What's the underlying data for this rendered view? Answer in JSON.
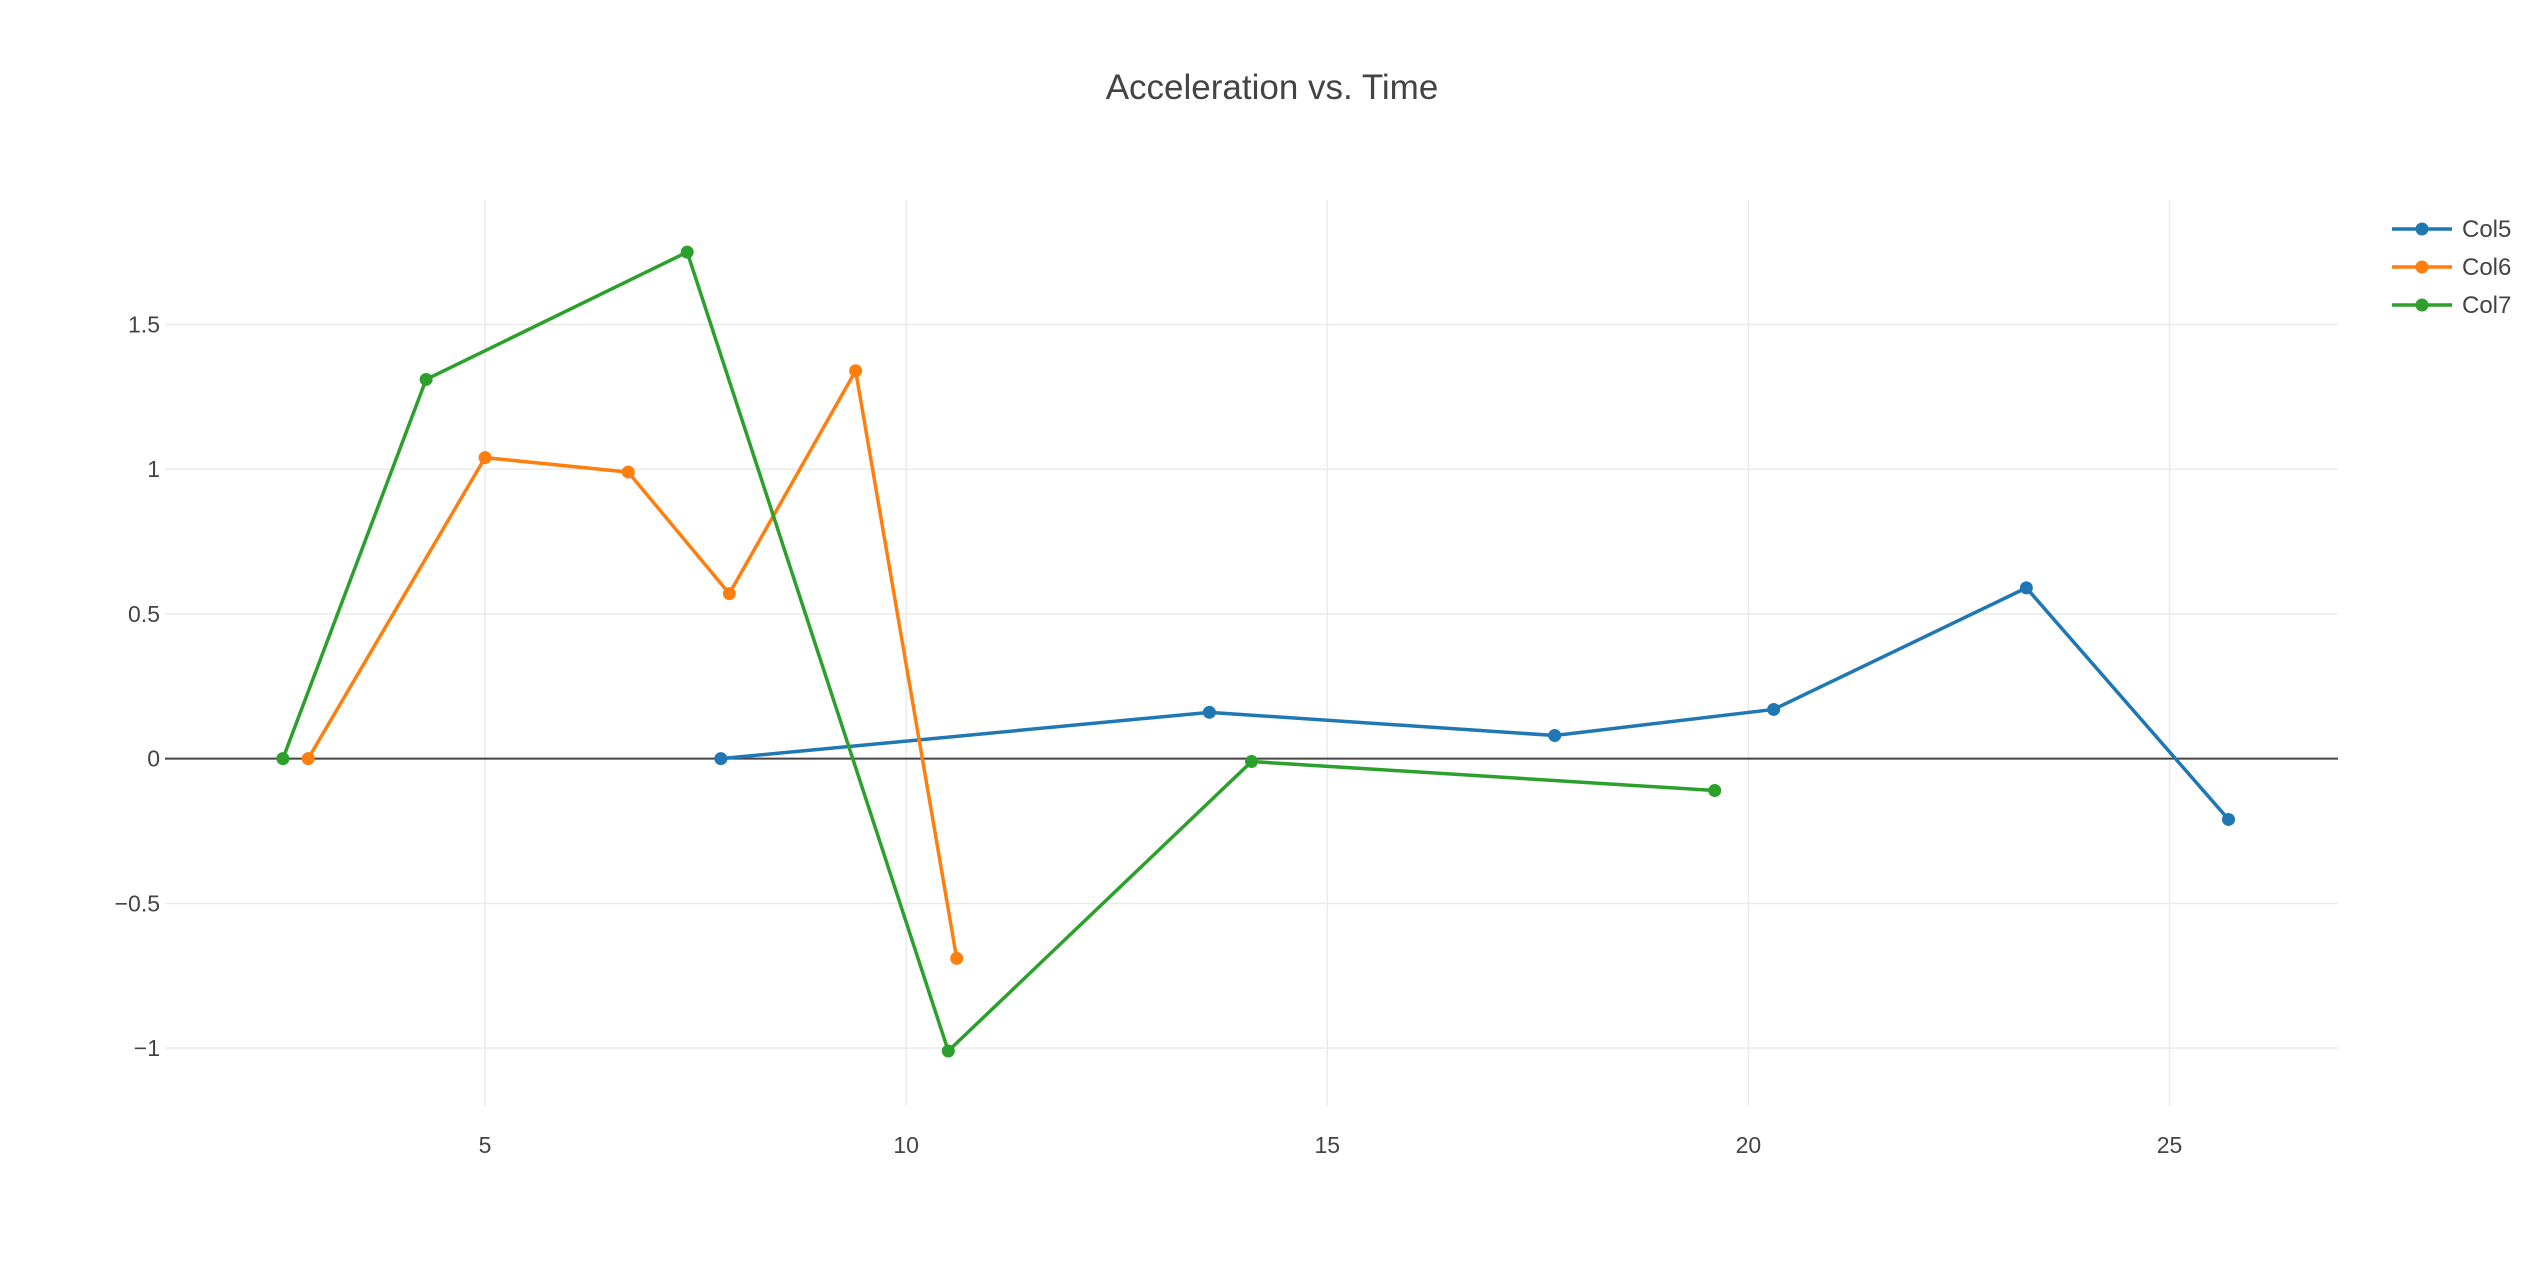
{
  "chart_data": {
    "type": "line",
    "title": "Acceleration vs. Time",
    "xlabel": "",
    "ylabel": "",
    "xlim": [
      1.2,
      27.0
    ],
    "ylim": [
      -1.2,
      1.93
    ],
    "x_ticks": [
      5,
      10,
      15,
      20,
      25
    ],
    "x_tick_labels": [
      "5",
      "10",
      "15",
      "20",
      "25"
    ],
    "y_ticks": [
      -1,
      -0.5,
      0,
      0.5,
      1,
      1.5
    ],
    "y_tick_labels": [
      "−1",
      "−0.5",
      "0",
      "0.5",
      "1",
      "1.5"
    ],
    "grid": true,
    "zero_line": true,
    "legend_position": "top-right",
    "series": [
      {
        "name": "Col5",
        "color": "#1f77b4",
        "x": [
          7.8,
          13.6,
          17.7,
          20.3,
          23.3,
          25.7
        ],
        "y": [
          0.0,
          0.16,
          0.08,
          0.17,
          0.59,
          -0.21
        ]
      },
      {
        "name": "Col6",
        "color": "#ff7f0e",
        "x": [
          2.9,
          5.0,
          6.7,
          7.9,
          9.4,
          10.6
        ],
        "y": [
          0.0,
          1.04,
          0.99,
          0.57,
          1.34,
          -0.69
        ]
      },
      {
        "name": "Col7",
        "color": "#2ca02c",
        "x": [
          2.6,
          4.3,
          7.4,
          10.5,
          14.1,
          19.6
        ],
        "y": [
          0.0,
          1.31,
          1.75,
          -1.01,
          -0.01,
          -0.11
        ]
      }
    ]
  }
}
